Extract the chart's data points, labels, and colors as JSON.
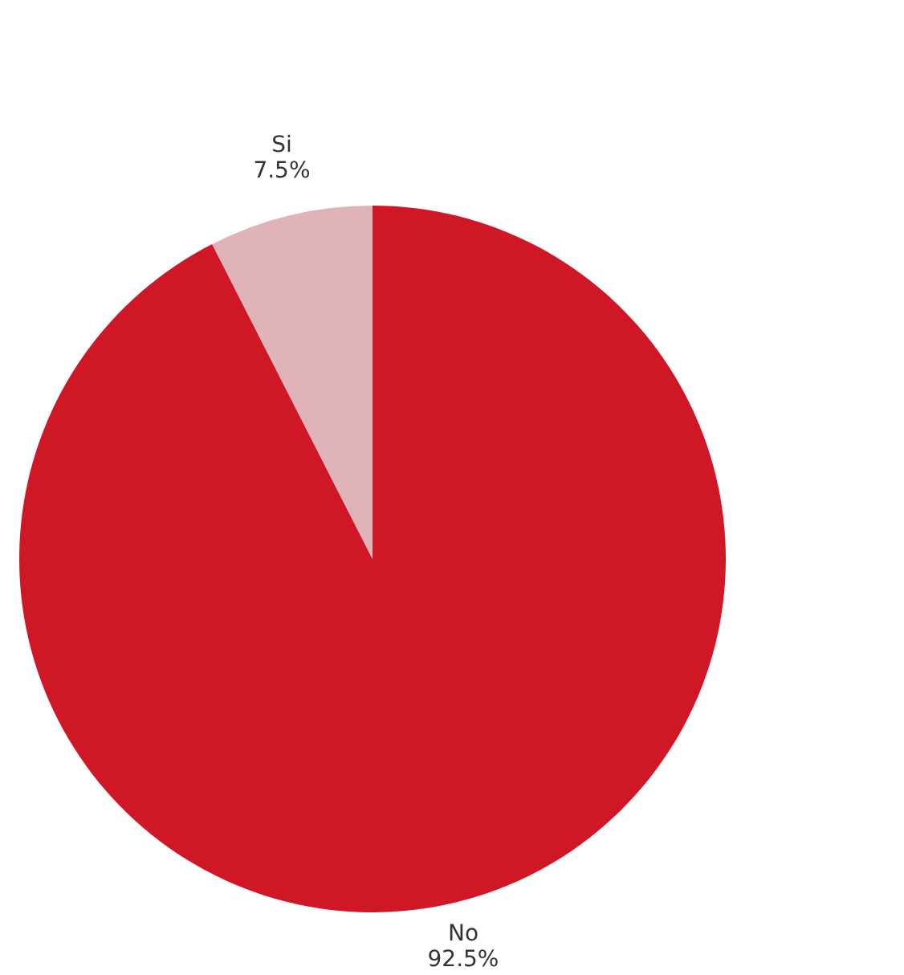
{
  "chart_data": {
    "type": "pie",
    "categories": [
      "No",
      "Si"
    ],
    "values": [
      92.5,
      7.5
    ],
    "colors": [
      "#d01726",
      "#e0b3b8"
    ],
    "value_labels": [
      "92.5%",
      "7.5%"
    ]
  }
}
